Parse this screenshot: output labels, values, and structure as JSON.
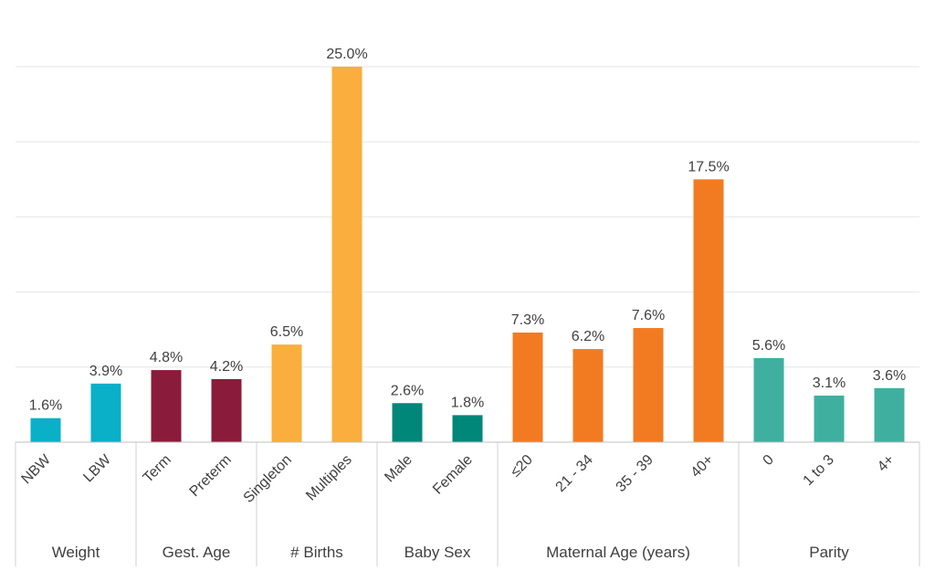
{
  "chart_data": {
    "type": "bar",
    "ylim": [
      0,
      25
    ],
    "y_gridlines": [
      0,
      5,
      10,
      15,
      20,
      25
    ],
    "grid": true,
    "value_suffix": "%",
    "groups": [
      {
        "label": "Weight",
        "color": "#0AAFC8",
        "bars": [
          {
            "category": "NBW",
            "value": 1.6,
            "value_label": "1.6%"
          },
          {
            "category": "LBW",
            "value": 3.9,
            "value_label": "3.9%"
          }
        ]
      },
      {
        "label": "Gest. Age",
        "color": "#8B1B3B",
        "bars": [
          {
            "category": "Term",
            "value": 4.8,
            "value_label": "4.8%"
          },
          {
            "category": "Preterm",
            "value": 4.2,
            "value_label": "4.2%"
          }
        ]
      },
      {
        "label": "# Births",
        "color": "#F9AE3E",
        "bars": [
          {
            "category": "Singleton",
            "value": 6.5,
            "value_label": "6.5%"
          },
          {
            "category": "Multiples",
            "value": 25.0,
            "value_label": "25.0%"
          }
        ]
      },
      {
        "label": "Baby Sex",
        "color": "#00877A",
        "bars": [
          {
            "category": "Male",
            "value": 2.6,
            "value_label": "2.6%"
          },
          {
            "category": "Female",
            "value": 1.8,
            "value_label": "1.8%"
          }
        ]
      },
      {
        "label": "Maternal Age (years)",
        "color": "#F27B22",
        "bars": [
          {
            "category": "≤20",
            "value": 7.3,
            "value_label": "7.3%"
          },
          {
            "category": "21 - 34",
            "value": 6.2,
            "value_label": "6.2%"
          },
          {
            "category": "35 - 39",
            "value": 7.6,
            "value_label": "7.6%"
          },
          {
            "category": "40+",
            "value": 17.5,
            "value_label": "17.5%"
          }
        ]
      },
      {
        "label": "Parity",
        "color": "#3FB09F",
        "bars": [
          {
            "category": "0",
            "value": 5.6,
            "value_label": "5.6%"
          },
          {
            "category": "1 to 3",
            "value": 3.1,
            "value_label": "3.1%"
          },
          {
            "category": "4+",
            "value": 3.6,
            "value_label": "3.6%"
          }
        ]
      }
    ]
  }
}
